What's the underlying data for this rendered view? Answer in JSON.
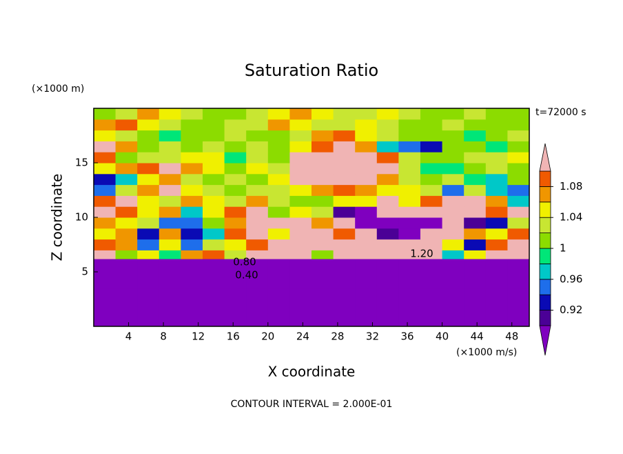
{
  "chart_data": {
    "type": "contour",
    "title": "Saturation Ratio",
    "y_unit": "(×1000 m)",
    "x_unit": "(×1000 m/s)",
    "time_label": "t=72000 s",
    "xlabel": "X coordinate",
    "ylabel": "Z coordinate",
    "footer": "CONTOUR INTERVAL = 2.000E-01",
    "contour_labels": [
      "0.80",
      "0.40",
      "1.20"
    ],
    "xlim": [
      0,
      50
    ],
    "ylim": [
      0,
      20
    ],
    "xticks": [
      4,
      8,
      12,
      16,
      20,
      24,
      28,
      32,
      36,
      40,
      44,
      48
    ],
    "yticks": [
      5,
      10,
      15
    ],
    "levels": [
      0.9,
      0.92,
      0.94,
      0.96,
      0.98,
      1.0,
      1.02,
      1.04,
      1.06,
      1.08,
      1.1
    ],
    "colors": [
      "#7f00bf",
      "#4b0096",
      "#0a0ab4",
      "#1e6eeb",
      "#00c8c8",
      "#00e678",
      "#8cdc00",
      "#c8e632",
      "#f0f000",
      "#f09600",
      "#f05a00",
      "#f0b4b4"
    ],
    "colorbar_ticks": [
      0.92,
      0.96,
      1,
      1.04,
      1.08
    ],
    "x_edges": [
      0,
      2.5,
      5,
      7.5,
      10,
      12.5,
      15,
      17.5,
      20,
      22.5,
      25,
      27.5,
      30,
      32.5,
      35,
      37.5,
      40,
      42.5,
      45,
      47.5,
      50
    ],
    "y_edges": [
      0,
      3.5,
      5,
      6.2,
      7,
      8,
      9,
      10,
      11,
      12,
      13,
      14,
      15,
      16,
      17,
      18,
      19,
      20
    ],
    "z": [
      [
        0.3,
        0.3,
        0.3,
        0.3,
        0.3,
        0.3,
        0.3,
        0.3,
        0.3,
        0.3,
        0.3,
        0.3,
        0.3,
        0.3,
        0.3,
        0.3,
        0.3,
        0.3,
        0.3,
        0.3
      ],
      [
        0.5,
        0.5,
        0.5,
        0.5,
        0.5,
        0.5,
        0.5,
        0.5,
        0.5,
        0.5,
        0.5,
        0.5,
        0.5,
        0.5,
        0.5,
        0.5,
        0.5,
        0.5,
        0.5,
        0.5
      ],
      [
        0.75,
        0.75,
        0.75,
        0.75,
        0.75,
        0.75,
        0.75,
        0.75,
        0.75,
        0.75,
        0.75,
        0.75,
        0.75,
        0.75,
        0.75,
        0.75,
        0.75,
        0.75,
        0.75,
        0.75
      ],
      [
        1.12,
        1.0,
        1.05,
        0.98,
        1.06,
        1.08,
        1.02,
        1.1,
        1.15,
        1.15,
        1.0,
        1.12,
        1.15,
        1.2,
        1.15,
        1.12,
        0.97,
        1.05,
        1.1,
        1.15
      ],
      [
        1.08,
        1.06,
        0.95,
        1.04,
        0.94,
        1.03,
        1.05,
        1.08,
        1.12,
        1.1,
        1.12,
        1.15,
        1.15,
        1.12,
        1.15,
        1.15,
        1.05,
        0.93,
        1.08,
        1.12
      ],
      [
        1.04,
        1.07,
        0.93,
        1.06,
        0.92,
        0.96,
        1.08,
        1.1,
        1.05,
        1.15,
        1.12,
        1.08,
        1.12,
        0.9,
        0.88,
        1.12,
        1.1,
        1.06,
        1.05,
        1.08
      ],
      [
        1.06,
        1.04,
        1.02,
        0.95,
        0.94,
        1.0,
        1.06,
        1.12,
        1.1,
        1.12,
        1.06,
        1.12,
        0.88,
        0.86,
        0.88,
        0.86,
        1.1,
        0.9,
        0.93,
        1.02
      ],
      [
        1.12,
        1.08,
        1.04,
        1.06,
        0.96,
        1.04,
        1.08,
        1.1,
        1.0,
        1.04,
        1.02,
        0.9,
        0.88,
        1.1,
        1.12,
        1.12,
        1.12,
        1.15,
        1.08,
        1.1
      ],
      [
        1.08,
        1.1,
        1.05,
        1.03,
        1.06,
        1.04,
        1.02,
        1.06,
        1.02,
        1.0,
        1.01,
        1.04,
        1.05,
        1.1,
        1.05,
        1.08,
        1.15,
        1.12,
        1.06,
        0.97
      ],
      [
        0.95,
        1.03,
        1.06,
        1.1,
        1.04,
        1.02,
        1.0,
        1.03,
        1.02,
        1.04,
        1.06,
        1.08,
        1.06,
        1.04,
        1.05,
        1.02,
        0.94,
        1.02,
        0.97,
        0.95
      ],
      [
        0.93,
        0.96,
        1.04,
        1.06,
        1.03,
        1.0,
        1.02,
        1.01,
        1.04,
        1.12,
        1.15,
        1.12,
        1.14,
        1.06,
        1.03,
        1.01,
        1.02,
        0.98,
        0.96,
        1.0
      ],
      [
        1.04,
        1.06,
        1.08,
        1.1,
        1.06,
        1.04,
        1.01,
        1.04,
        1.02,
        1.15,
        1.12,
        1.15,
        1.12,
        1.1,
        1.03,
        0.98,
        0.99,
        1.0,
        1.02,
        1.01
      ],
      [
        1.08,
        1.0,
        1.02,
        1.03,
        1.05,
        1.04,
        0.99,
        1.03,
        1.01,
        1.12,
        1.15,
        1.12,
        1.15,
        1.08,
        1.02,
        1.0,
        1.01,
        1.02,
        1.03,
        1.05
      ],
      [
        1.15,
        1.06,
        1.0,
        1.02,
        1.01,
        1.03,
        1.0,
        1.02,
        1.01,
        1.04,
        1.08,
        1.1,
        1.06,
        0.97,
        0.94,
        0.93,
        1.0,
        1.01,
        0.98,
        1.0
      ],
      [
        1.04,
        1.02,
        1.01,
        0.99,
        1.01,
        1.0,
        1.02,
        1.01,
        1.0,
        1.02,
        1.06,
        1.08,
        1.04,
        1.02,
        1.0,
        1.01,
        1.0,
        0.99,
        1.01,
        1.02
      ],
      [
        1.06,
        1.08,
        1.04,
        1.03,
        1.01,
        1.0,
        1.02,
        1.03,
        1.06,
        1.04,
        1.02,
        1.03,
        1.04,
        1.02,
        1.01,
        1.0,
        1.02,
        1.0,
        1.01,
        1.0
      ],
      [
        1.01,
        1.02,
        1.06,
        1.04,
        1.03,
        1.01,
        1.0,
        1.02,
        1.04,
        1.06,
        1.04,
        1.02,
        1.03,
        1.05,
        1.02,
        1.01,
        1.0,
        1.02,
        1.01,
        1.0
      ]
    ]
  }
}
